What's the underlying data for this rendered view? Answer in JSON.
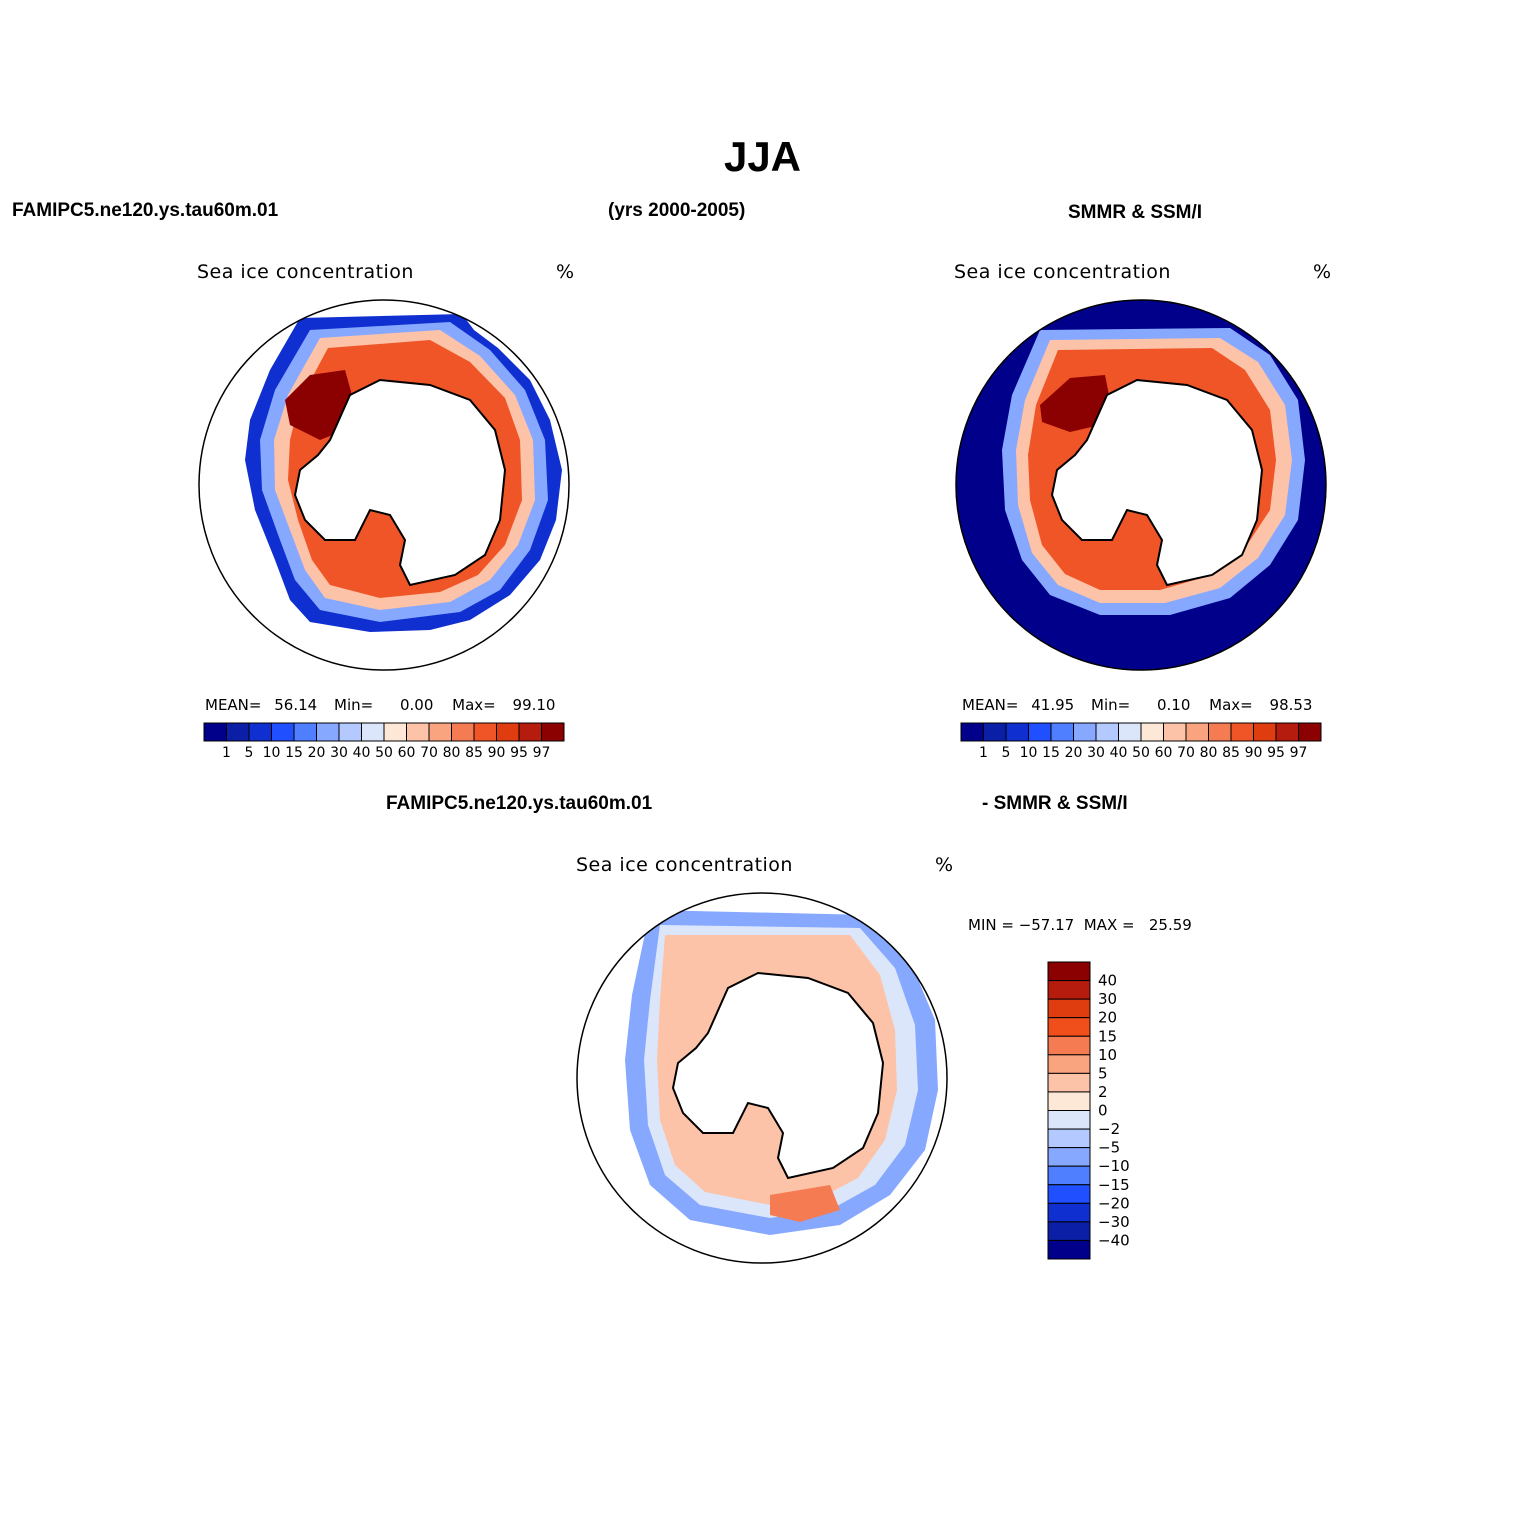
{
  "page": {
    "main_title": "JJA",
    "header_left": "FAMIPC5.ne120.ys.tau60m.01",
    "header_center": "(yrs 2000-2005)",
    "header_right": "SMMR & SSM/I",
    "diff_left": "FAMIPC5.ne120.ys.tau60m.01",
    "diff_right": "- SMMR & SSM/I"
  },
  "panels": [
    {
      "id": "model",
      "variable": "Sea ice concentration",
      "units": "%",
      "stats": {
        "mean_label": "MEAN=",
        "mean": "56.14",
        "min_label": "Min=",
        "min": "0.00",
        "max_label": "Max=",
        "max": "99.10"
      }
    },
    {
      "id": "obs",
      "variable": "Sea ice concentration",
      "units": "%",
      "stats": {
        "mean_label": "MEAN=",
        "mean": "41.95",
        "min_label": "Min=",
        "min": "0.10",
        "max_label": "Max=",
        "max": "98.53"
      }
    },
    {
      "id": "diff",
      "variable": "Sea ice concentration",
      "units": "%",
      "minmax": "MIN = −57.17  MAX =   25.59"
    }
  ],
  "colorbars": {
    "concentration": {
      "labels": [
        "1",
        "5",
        "10",
        "15",
        "20",
        "30",
        "40",
        "50",
        "60",
        "70",
        "80",
        "85",
        "90",
        "95",
        "97"
      ],
      "colors": [
        "#00008b",
        "#0a1fa6",
        "#0f2fd0",
        "#1f4fff",
        "#4f7fff",
        "#86a8ff",
        "#b4c9ff",
        "#dce6fa",
        "#fde8d8",
        "#fcc3a8",
        "#f9a37f",
        "#f47b52",
        "#ef5526",
        "#df3d10",
        "#b51c0d",
        "#8b0000"
      ]
    },
    "difference": {
      "labels": [
        "40",
        "30",
        "20",
        "15",
        "10",
        "5",
        "2",
        "0",
        "−2",
        "−5",
        "−10",
        "−15",
        "−20",
        "−30",
        "−40"
      ],
      "colors": [
        "#8b0000",
        "#b51c0d",
        "#df3d10",
        "#f04e1a",
        "#f47b52",
        "#f9a37f",
        "#fcc3a8",
        "#fde8d8",
        "#dce6fa",
        "#b4c9ff",
        "#86a8ff",
        "#4f7fff",
        "#1f4fff",
        "#0f2fd0",
        "#0a1fa6",
        "#00008b"
      ]
    }
  }
}
